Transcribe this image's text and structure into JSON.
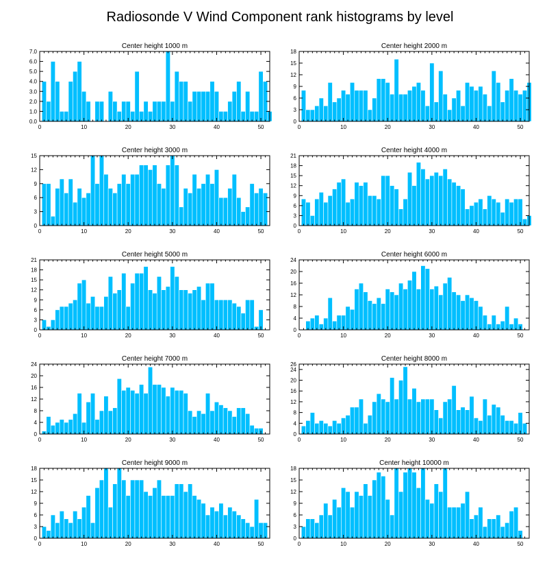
{
  "figure_title": "Radiosonde V Wind Component rank histograms by level",
  "colors": {
    "bar": "#00bfff",
    "axis": "#000000",
    "background": "#ffffff"
  },
  "chart_data": [
    {
      "type": "bar",
      "title": "Center height 1000 m",
      "xlim": [
        0,
        52
      ],
      "ylim": [
        0,
        7
      ],
      "xticks": [
        0,
        10,
        20,
        30,
        40,
        50
      ],
      "yticks": [
        0,
        1,
        2,
        3,
        4,
        5,
        6,
        7
      ],
      "ytick_labels": [
        "0.0",
        "1.0",
        "2.0",
        "3.0",
        "4.0",
        "5.0",
        "6.0",
        "7.0"
      ],
      "start": 1,
      "values": [
        4,
        2,
        6,
        4,
        1,
        1,
        4,
        5,
        6,
        3,
        2,
        0,
        2,
        2,
        0,
        3,
        2,
        1,
        2,
        2,
        1,
        5,
        1,
        2,
        1,
        2,
        2,
        2,
        7,
        2,
        5,
        4,
        4,
        2,
        3,
        3,
        3,
        3,
        4,
        3,
        1,
        1,
        2,
        3,
        4,
        1,
        3,
        1,
        1,
        5,
        4,
        1
      ]
    },
    {
      "type": "bar",
      "title": "Center height 2000 m",
      "xlim": [
        0,
        52
      ],
      "ylim": [
        0,
        18
      ],
      "xticks": [
        0,
        10,
        20,
        30,
        40,
        50
      ],
      "yticks": [
        0,
        3,
        6,
        9,
        12,
        15,
        18
      ],
      "ytick_labels": [
        "0",
        "3",
        "6",
        "9",
        "12",
        "15",
        "18"
      ],
      "start": 1,
      "values": [
        8,
        3,
        3,
        4,
        6,
        4,
        10,
        5,
        6,
        8,
        7,
        10,
        8,
        8,
        8,
        3,
        6,
        11,
        11,
        10,
        7,
        16,
        7,
        7,
        8,
        9,
        10,
        8,
        4,
        15,
        5,
        13,
        7,
        3,
        6,
        8,
        4,
        10,
        9,
        8,
        9,
        7,
        4,
        13,
        10,
        5,
        8,
        11,
        8,
        7,
        8,
        10
      ]
    },
    {
      "type": "bar",
      "title": "Center height 3000 m",
      "xlim": [
        0,
        52
      ],
      "ylim": [
        0,
        15
      ],
      "xticks": [
        0,
        10,
        20,
        30,
        40,
        50
      ],
      "yticks": [
        0,
        3,
        6,
        9,
        12,
        15
      ],
      "ytick_labels": [
        "0",
        "3",
        "6",
        "9",
        "12",
        "15"
      ],
      "start": 1,
      "values": [
        9,
        9,
        2,
        8,
        10,
        7,
        10,
        5,
        8,
        6,
        7,
        15,
        9,
        15,
        11,
        8,
        7,
        9,
        11,
        9,
        11,
        11,
        13,
        13,
        12,
        13,
        9,
        8,
        13,
        15,
        13,
        4,
        8,
        7,
        11,
        8,
        9,
        11,
        9,
        12,
        6,
        6,
        8,
        11,
        6,
        3,
        4,
        9,
        7,
        8,
        7
      ]
    },
    {
      "type": "bar",
      "title": "Center height 4000 m",
      "xlim": [
        0,
        52
      ],
      "ylim": [
        0,
        21
      ],
      "xticks": [
        0,
        10,
        20,
        30,
        40,
        50
      ],
      "yticks": [
        0,
        3,
        6,
        9,
        12,
        15,
        18,
        21
      ],
      "ytick_labels": [
        "0",
        "3",
        "6",
        "9",
        "12",
        "15",
        "18",
        "21"
      ],
      "start": 1,
      "values": [
        8,
        7,
        3,
        8,
        10,
        7,
        9,
        11,
        13,
        14,
        7,
        8,
        13,
        12,
        13,
        9,
        9,
        8,
        15,
        15,
        12,
        11,
        5,
        8,
        16,
        12,
        19,
        17,
        14,
        15,
        16,
        15,
        17,
        14,
        13,
        12,
        11,
        5,
        6,
        7,
        8,
        5,
        9,
        8,
        7,
        4,
        8,
        7,
        8,
        8,
        2,
        3
      ]
    },
    {
      "type": "bar",
      "title": "Center height 5000 m",
      "xlim": [
        0,
        52
      ],
      "ylim": [
        0,
        21
      ],
      "xticks": [
        0,
        10,
        20,
        30,
        40,
        50
      ],
      "yticks": [
        0,
        3,
        6,
        9,
        12,
        15,
        18,
        21
      ],
      "ytick_labels": [
        "0",
        "3",
        "6",
        "9",
        "12",
        "15",
        "18",
        "21"
      ],
      "start": 1,
      "values": [
        3,
        1,
        3,
        6,
        7,
        7,
        8,
        9,
        14,
        15,
        8,
        10,
        7,
        7,
        10,
        16,
        11,
        12,
        17,
        7,
        14,
        17,
        17,
        19,
        12,
        11,
        16,
        12,
        13,
        19,
        16,
        12,
        12,
        11,
        12,
        13,
        9,
        14,
        14,
        9,
        9,
        9,
        9,
        8,
        7,
        5,
        9,
        9,
        1,
        6
      ]
    },
    {
      "type": "bar",
      "title": "Center height 6000 m",
      "xlim": [
        0,
        52
      ],
      "ylim": [
        0,
        24
      ],
      "xticks": [
        0,
        10,
        20,
        30,
        40,
        50
      ],
      "yticks": [
        0,
        4,
        8,
        12,
        16,
        20,
        24
      ],
      "ytick_labels": [
        "0",
        "4",
        "8",
        "12",
        "16",
        "20",
        "24"
      ],
      "start": 2,
      "values": [
        3,
        4,
        5,
        2,
        4,
        11,
        3,
        5,
        5,
        8,
        7,
        14,
        16,
        13,
        10,
        9,
        11,
        9,
        14,
        13,
        12,
        16,
        14,
        17,
        20,
        14,
        22,
        21,
        14,
        15,
        12,
        16,
        18,
        13,
        12,
        10,
        12,
        11,
        10,
        8,
        5,
        2,
        5,
        2,
        3,
        8,
        2,
        4,
        2
      ]
    },
    {
      "type": "bar",
      "title": "Center height 7000 m",
      "xlim": [
        0,
        52
      ],
      "ylim": [
        0,
        24
      ],
      "xticks": [
        0,
        10,
        20,
        30,
        40,
        50
      ],
      "yticks": [
        0,
        4,
        8,
        12,
        16,
        20,
        24
      ],
      "ytick_labels": [
        "0",
        "4",
        "8",
        "12",
        "16",
        "20",
        "24"
      ],
      "start": 1,
      "values": [
        1,
        6,
        3,
        4,
        5,
        4,
        5,
        7,
        14,
        4,
        11,
        14,
        5,
        8,
        13,
        8,
        9,
        19,
        15,
        16,
        15,
        14,
        17,
        14,
        23,
        17,
        17,
        16,
        13,
        16,
        15,
        15,
        14,
        8,
        6,
        8,
        7,
        14,
        8,
        11,
        10,
        9,
        8,
        6,
        9,
        9,
        7,
        3,
        2,
        2
      ]
    },
    {
      "type": "bar",
      "title": "Center height 8000 m",
      "xlim": [
        0,
        52
      ],
      "ylim": [
        0,
        26
      ],
      "xticks": [
        0,
        10,
        20,
        30,
        40,
        50
      ],
      "yticks": [
        0,
        4,
        8,
        12,
        16,
        20,
        24,
        26
      ],
      "ytick_labels": [
        "0",
        "4",
        "8",
        "12",
        "16",
        "20",
        "24",
        "26"
      ],
      "start": 1,
      "values": [
        3,
        5,
        8,
        4,
        5,
        4,
        3,
        5,
        4,
        6,
        7,
        10,
        10,
        13,
        4,
        7,
        12,
        15,
        13,
        12,
        21,
        13,
        20,
        25,
        13,
        17,
        12,
        13,
        13,
        13,
        9,
        6,
        12,
        13,
        18,
        9,
        10,
        9,
        14,
        6,
        5,
        13,
        7,
        11,
        10,
        7,
        5,
        5,
        4,
        8,
        4
      ]
    },
    {
      "type": "bar",
      "title": "Center height 9000 m",
      "xlim": [
        0,
        52
      ],
      "ylim": [
        0,
        18
      ],
      "xticks": [
        0,
        10,
        20,
        30,
        40,
        50
      ],
      "yticks": [
        0,
        3,
        6,
        9,
        12,
        15,
        18
      ],
      "ytick_labels": [
        "0",
        "3",
        "6",
        "9",
        "12",
        "15",
        "18"
      ],
      "start": 1,
      "values": [
        3,
        2,
        6,
        4,
        7,
        5,
        4,
        7,
        5,
        8,
        11,
        4,
        13,
        15,
        18,
        8,
        14,
        18,
        15,
        11,
        15,
        15,
        15,
        12,
        11,
        13,
        15,
        11,
        11,
        11,
        14,
        14,
        12,
        14,
        11,
        10,
        9,
        6,
        8,
        7,
        9,
        6,
        8,
        7,
        6,
        5,
        4,
        3,
        10,
        4,
        4
      ]
    },
    {
      "type": "bar",
      "title": "Center height 10000 m",
      "xlim": [
        0,
        52
      ],
      "ylim": [
        0,
        18
      ],
      "xticks": [
        0,
        10,
        20,
        30,
        40,
        50
      ],
      "yticks": [
        0,
        3,
        6,
        9,
        12,
        15,
        18
      ],
      "ytick_labels": [
        "0",
        "3",
        "6",
        "9",
        "12",
        "15",
        "18"
      ],
      "start": 1,
      "values": [
        3,
        5,
        5,
        4,
        6,
        9,
        6,
        10,
        8,
        13,
        12,
        8,
        12,
        11,
        14,
        11,
        15,
        17,
        16,
        10,
        6,
        18,
        12,
        17,
        18,
        17,
        13,
        18,
        10,
        9,
        14,
        12,
        18,
        8,
        8,
        8,
        9,
        12,
        5,
        6,
        8,
        3,
        5,
        5,
        6,
        3,
        4,
        7,
        8,
        2
      ]
    }
  ]
}
